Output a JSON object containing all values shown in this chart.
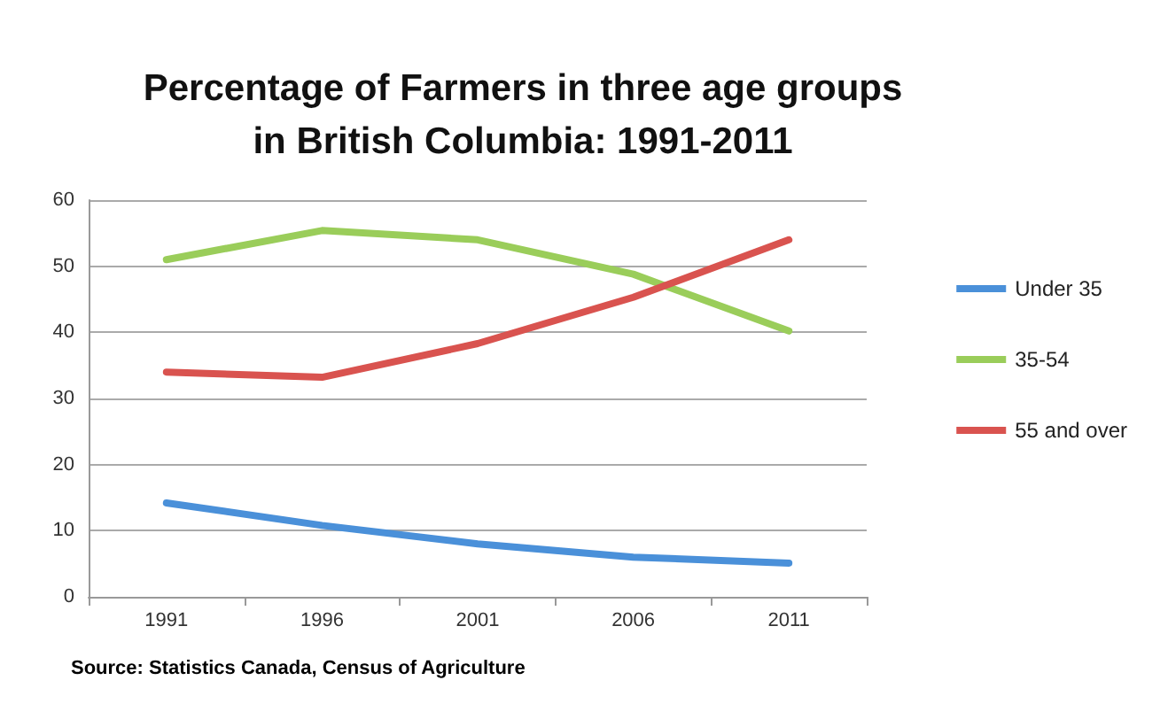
{
  "chart_data": {
    "type": "line",
    "title": "Percentage of Farmers in three age groups\nin British Columbia: 1991-2011",
    "categories": [
      "1991",
      "1996",
      "2001",
      "2006",
      "2011"
    ],
    "series": [
      {
        "name": "Under 35",
        "color": "#4a90d9",
        "values": [
          14.2,
          10.8,
          8,
          6,
          5.1
        ]
      },
      {
        "name": "35-54",
        "color": "#9acd5a",
        "values": [
          51,
          55.4,
          54,
          48.8,
          40.2
        ]
      },
      {
        "name": "55 and over",
        "color": "#d9534f",
        "values": [
          34,
          33.2,
          38.3,
          45.3,
          54
        ]
      }
    ],
    "ylim": [
      0,
      60
    ],
    "yticks": [
      0,
      10,
      20,
      30,
      40,
      50,
      60
    ],
    "grid": "y",
    "legend": "right",
    "marker": "none",
    "line_style": "solid",
    "annotations": [
      "Source: Statistics Canada, Census of Agriculture"
    ]
  }
}
